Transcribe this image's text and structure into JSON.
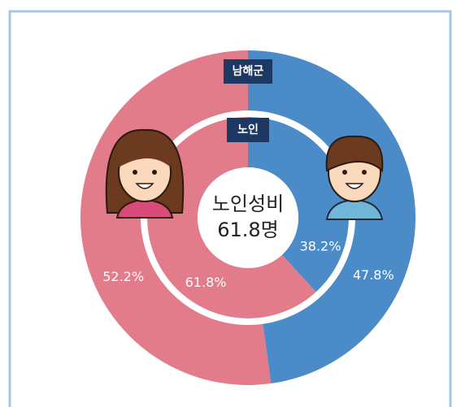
{
  "chart_data": {
    "type": "donut",
    "rings": [
      {
        "name": "남해군",
        "values": [
          47.8,
          52.2
        ],
        "value_labels": [
          "47.8%",
          "52.2%"
        ],
        "colors": [
          "#4b8bc7",
          "#e27c8b"
        ]
      },
      {
        "name": "노인",
        "values": [
          38.2,
          61.8
        ],
        "value_labels": [
          "38.2%",
          "61.8%"
        ],
        "colors": [
          "#4b8bc7",
          "#e27c8b"
        ]
      }
    ],
    "center_label": [
      "노인성비",
      "61.8명"
    ]
  }
}
